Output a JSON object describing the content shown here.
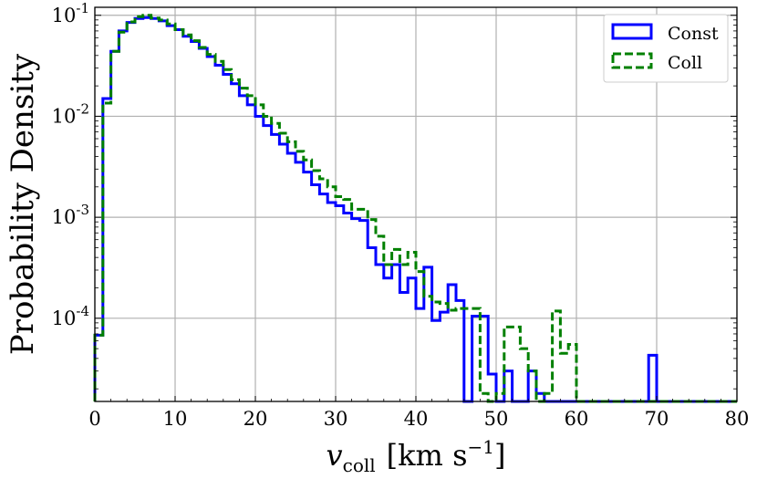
{
  "chart_data": {
    "type": "histogram-step",
    "xlabel": {
      "var": "v",
      "sub": "coll",
      "unit_open": "[km s",
      "unit_exp": "−1",
      "unit_close": "]"
    },
    "ylabel": "Probability Density",
    "xlim": [
      0,
      80
    ],
    "ylim": [
      1.5e-05,
      0.12
    ],
    "yscale": "log",
    "grid": true,
    "legend_position": "top-right",
    "x_ticks": [
      0,
      10,
      20,
      30,
      40,
      50,
      60,
      70,
      80
    ],
    "y_ticks": [
      {
        "value": 0.1,
        "base": "10",
        "exp": "-1"
      },
      {
        "value": 0.01,
        "base": "10",
        "exp": "-2"
      },
      {
        "value": 0.001,
        "base": "10",
        "exp": "-3"
      },
      {
        "value": 0.0001,
        "base": "10",
        "exp": "-4"
      }
    ],
    "bin_edges": [
      0,
      1,
      2,
      3,
      4,
      5,
      6,
      7,
      8,
      9,
      10,
      11,
      12,
      13,
      14,
      15,
      16,
      17,
      18,
      19,
      20,
      21,
      22,
      23,
      24,
      25,
      26,
      27,
      28,
      29,
      30,
      31,
      32,
      33,
      34,
      35,
      36,
      37,
      38,
      39,
      40,
      41,
      42,
      43,
      44,
      45,
      46,
      47,
      48,
      49,
      50,
      51,
      52,
      53,
      54,
      55,
      56,
      57,
      58,
      59,
      60,
      61,
      62,
      63,
      64,
      65,
      66,
      67,
      68,
      69,
      70,
      71,
      72,
      73,
      74,
      75,
      76,
      77,
      78,
      79,
      80
    ],
    "series": [
      {
        "name": "Const",
        "color": "#0000ff",
        "linestyle": "solid",
        "values": [
          6.8e-05,
          0.015,
          0.044,
          0.07,
          0.085,
          0.093,
          0.095,
          0.093,
          0.088,
          0.079,
          0.072,
          0.062,
          0.055,
          0.047,
          0.039,
          0.032,
          0.026,
          0.021,
          0.016,
          0.013,
          0.01,
          0.0081,
          0.0066,
          0.0053,
          0.0043,
          0.0035,
          0.0028,
          0.0021,
          0.0017,
          0.0014,
          0.0013,
          0.0011,
          0.00097,
          0.00093,
          0.0005,
          0.00034,
          0.00025,
          0.00034,
          0.00018,
          0.00025,
          0.000125,
          0.00032,
          9.5e-05,
          0.000115,
          0.000215,
          0.00015,
          null,
          0.000105,
          0.000105,
          2.8e-05,
          1.3e-05,
          3e-05,
          null,
          null,
          3e-05,
          1.8e-05,
          1.5e-05,
          null,
          null,
          null,
          null,
          null,
          null,
          null,
          null,
          null,
          null,
          null,
          null,
          4.3e-05,
          null,
          null,
          null,
          null,
          null,
          null,
          null,
          null,
          null,
          null
        ]
      },
      {
        "name": "Coll",
        "color": "#008000",
        "linestyle": "dashed",
        "values": [
          6.8e-05,
          0.0135,
          0.044,
          0.068,
          0.086,
          0.097,
          0.1,
          0.094,
          0.09,
          0.082,
          0.072,
          0.064,
          0.056,
          0.048,
          0.041,
          0.035,
          0.029,
          0.023,
          0.019,
          0.016,
          0.013,
          0.01,
          0.0085,
          0.0068,
          0.0056,
          0.0045,
          0.0037,
          0.0029,
          0.0024,
          0.002,
          0.0016,
          0.0015,
          0.0012,
          0.0012,
          0.00095,
          0.00065,
          0.00034,
          0.00048,
          0.00034,
          0.00045,
          0.00029,
          0.000165,
          0.000145,
          0.00014,
          0.00012,
          0.000125,
          0.000125,
          0.000125,
          1.8e-05,
          1.2e-05,
          1.8e-05,
          8.2e-05,
          8.2e-05,
          5e-05,
          3e-05,
          1.5e-05,
          1.8e-05,
          0.000118,
          4.5e-05,
          5.5e-05,
          null,
          null,
          null,
          null,
          null,
          null,
          null,
          null,
          null,
          null,
          null,
          null,
          null,
          null,
          null,
          null,
          null,
          null,
          null,
          null
        ]
      }
    ]
  }
}
